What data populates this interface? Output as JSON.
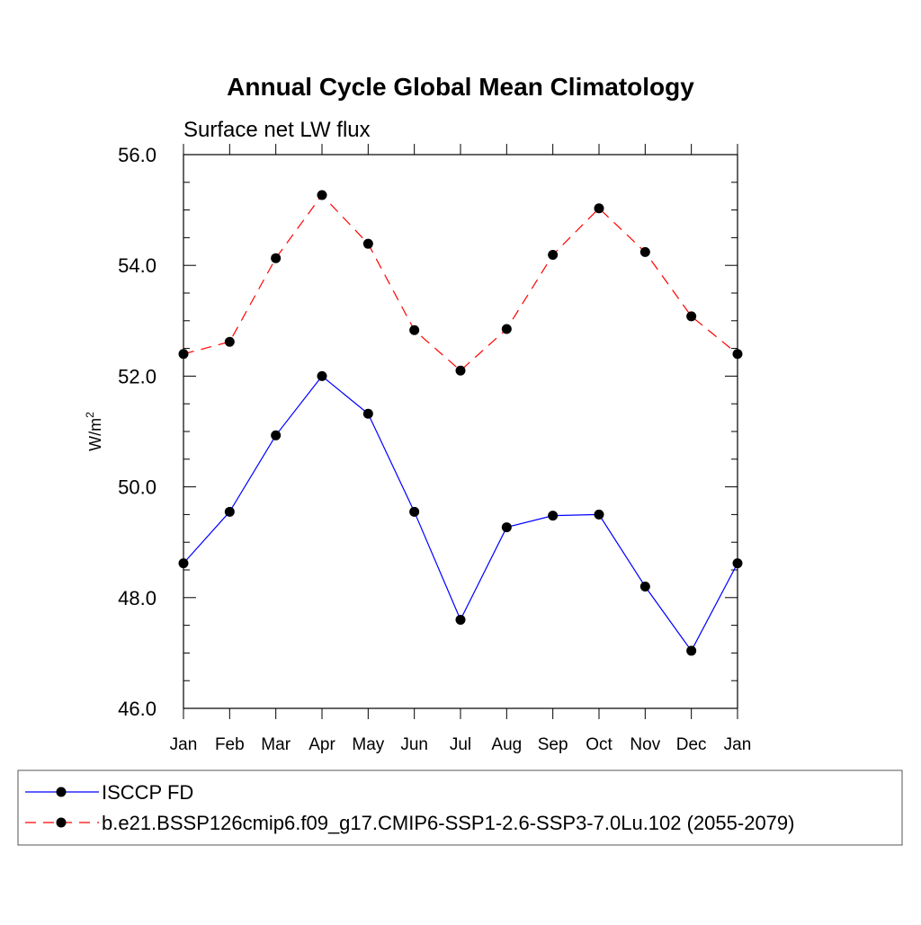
{
  "chart_data": {
    "type": "line",
    "title": "Annual Cycle Global Mean Climatology",
    "subtitle": "Surface net LW flux",
    "ylabel": "W/m",
    "ylabel_superscript": "2",
    "xlabel": "",
    "categories": [
      "Jan",
      "Feb",
      "Mar",
      "Apr",
      "May",
      "Jun",
      "Jul",
      "Aug",
      "Sep",
      "Oct",
      "Nov",
      "Dec",
      "Jan"
    ],
    "ylim": [
      46.0,
      56.0
    ],
    "yticks": [
      46.0,
      48.0,
      50.0,
      52.0,
      54.0,
      56.0
    ],
    "ytick_labels": [
      "46.0",
      "48.0",
      "50.0",
      "52.0",
      "54.0",
      "56.0"
    ],
    "grid": false,
    "legend_position": "bottom",
    "series": [
      {
        "name": "ISCCP FD",
        "color": "#0000ff",
        "dash": "solid",
        "marker": "circle",
        "values": [
          48.62,
          49.55,
          50.93,
          52.0,
          51.32,
          49.55,
          47.6,
          49.27,
          49.48,
          49.5,
          48.2,
          47.04,
          48.62
        ]
      },
      {
        "name": "b.e21.BSSP126cmip6.f09_g17.CMIP6-SSP1-2.6-SSP3-7.0Lu.102 (2055-2079)",
        "color": "#ff0000",
        "dash": "dashed",
        "marker": "circle",
        "values": [
          52.4,
          52.62,
          54.13,
          55.27,
          54.39,
          52.83,
          52.1,
          52.85,
          54.19,
          55.03,
          54.24,
          53.08,
          52.4
        ]
      }
    ]
  }
}
